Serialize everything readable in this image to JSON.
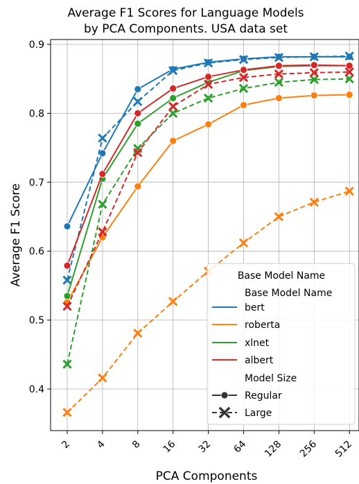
{
  "chart_data": {
    "type": "line",
    "title": "Average F1 Scores for Language Models",
    "subtitle": "by PCA Components. USA data set",
    "xlabel": "PCA Components",
    "ylabel": "Average F1 Score",
    "categories": [
      "2",
      "4",
      "8",
      "16",
      "32",
      "64",
      "128",
      "256",
      "512"
    ],
    "ylim": [
      0.34,
      0.91
    ],
    "yticks": [
      "0.4",
      "0.5",
      "0.6",
      "0.7",
      "0.8",
      "0.9"
    ],
    "grid": true,
    "legend": {
      "title": "Base Model Name",
      "placement": "lower-right",
      "group1_title": "Base Model Name",
      "group2_title": "Model Size",
      "regular_label": "Regular",
      "large_label": "Large"
    },
    "series": [
      {
        "name": "bert",
        "size": "Regular",
        "color": "#1f77b4",
        "values": [
          0.636,
          0.742,
          0.835,
          0.864,
          0.874,
          0.879,
          0.882,
          0.882,
          0.882
        ]
      },
      {
        "name": "bert",
        "size": "Large",
        "color": "#1f77b4",
        "values": [
          0.558,
          0.764,
          0.817,
          0.862,
          0.873,
          0.878,
          0.881,
          0.882,
          0.883
        ]
      },
      {
        "name": "roberta",
        "size": "Regular",
        "color": "#ff7f0e",
        "values": [
          0.526,
          0.62,
          0.694,
          0.76,
          0.784,
          0.812,
          0.822,
          0.826,
          0.827
        ]
      },
      {
        "name": "roberta",
        "size": "Large",
        "color": "#ff7f0e",
        "values": [
          0.366,
          0.416,
          0.481,
          0.527,
          0.571,
          0.612,
          0.65,
          0.671,
          0.687
        ]
      },
      {
        "name": "xlnet",
        "size": "Regular",
        "color": "#2ca02c",
        "values": [
          0.535,
          0.705,
          0.785,
          0.822,
          0.845,
          0.862,
          0.868,
          0.869,
          0.869
        ]
      },
      {
        "name": "xlnet",
        "size": "Large",
        "color": "#2ca02c",
        "values": [
          0.436,
          0.668,
          0.749,
          0.8,
          0.822,
          0.836,
          0.845,
          0.849,
          0.85
        ]
      },
      {
        "name": "albert",
        "size": "Regular",
        "color": "#d62728",
        "values": [
          0.579,
          0.712,
          0.8,
          0.836,
          0.853,
          0.863,
          0.869,
          0.87,
          0.869
        ]
      },
      {
        "name": "albert",
        "size": "Large",
        "color": "#d62728",
        "values": [
          0.52,
          0.628,
          0.743,
          0.81,
          0.842,
          0.852,
          0.857,
          0.859,
          0.86
        ]
      }
    ]
  }
}
